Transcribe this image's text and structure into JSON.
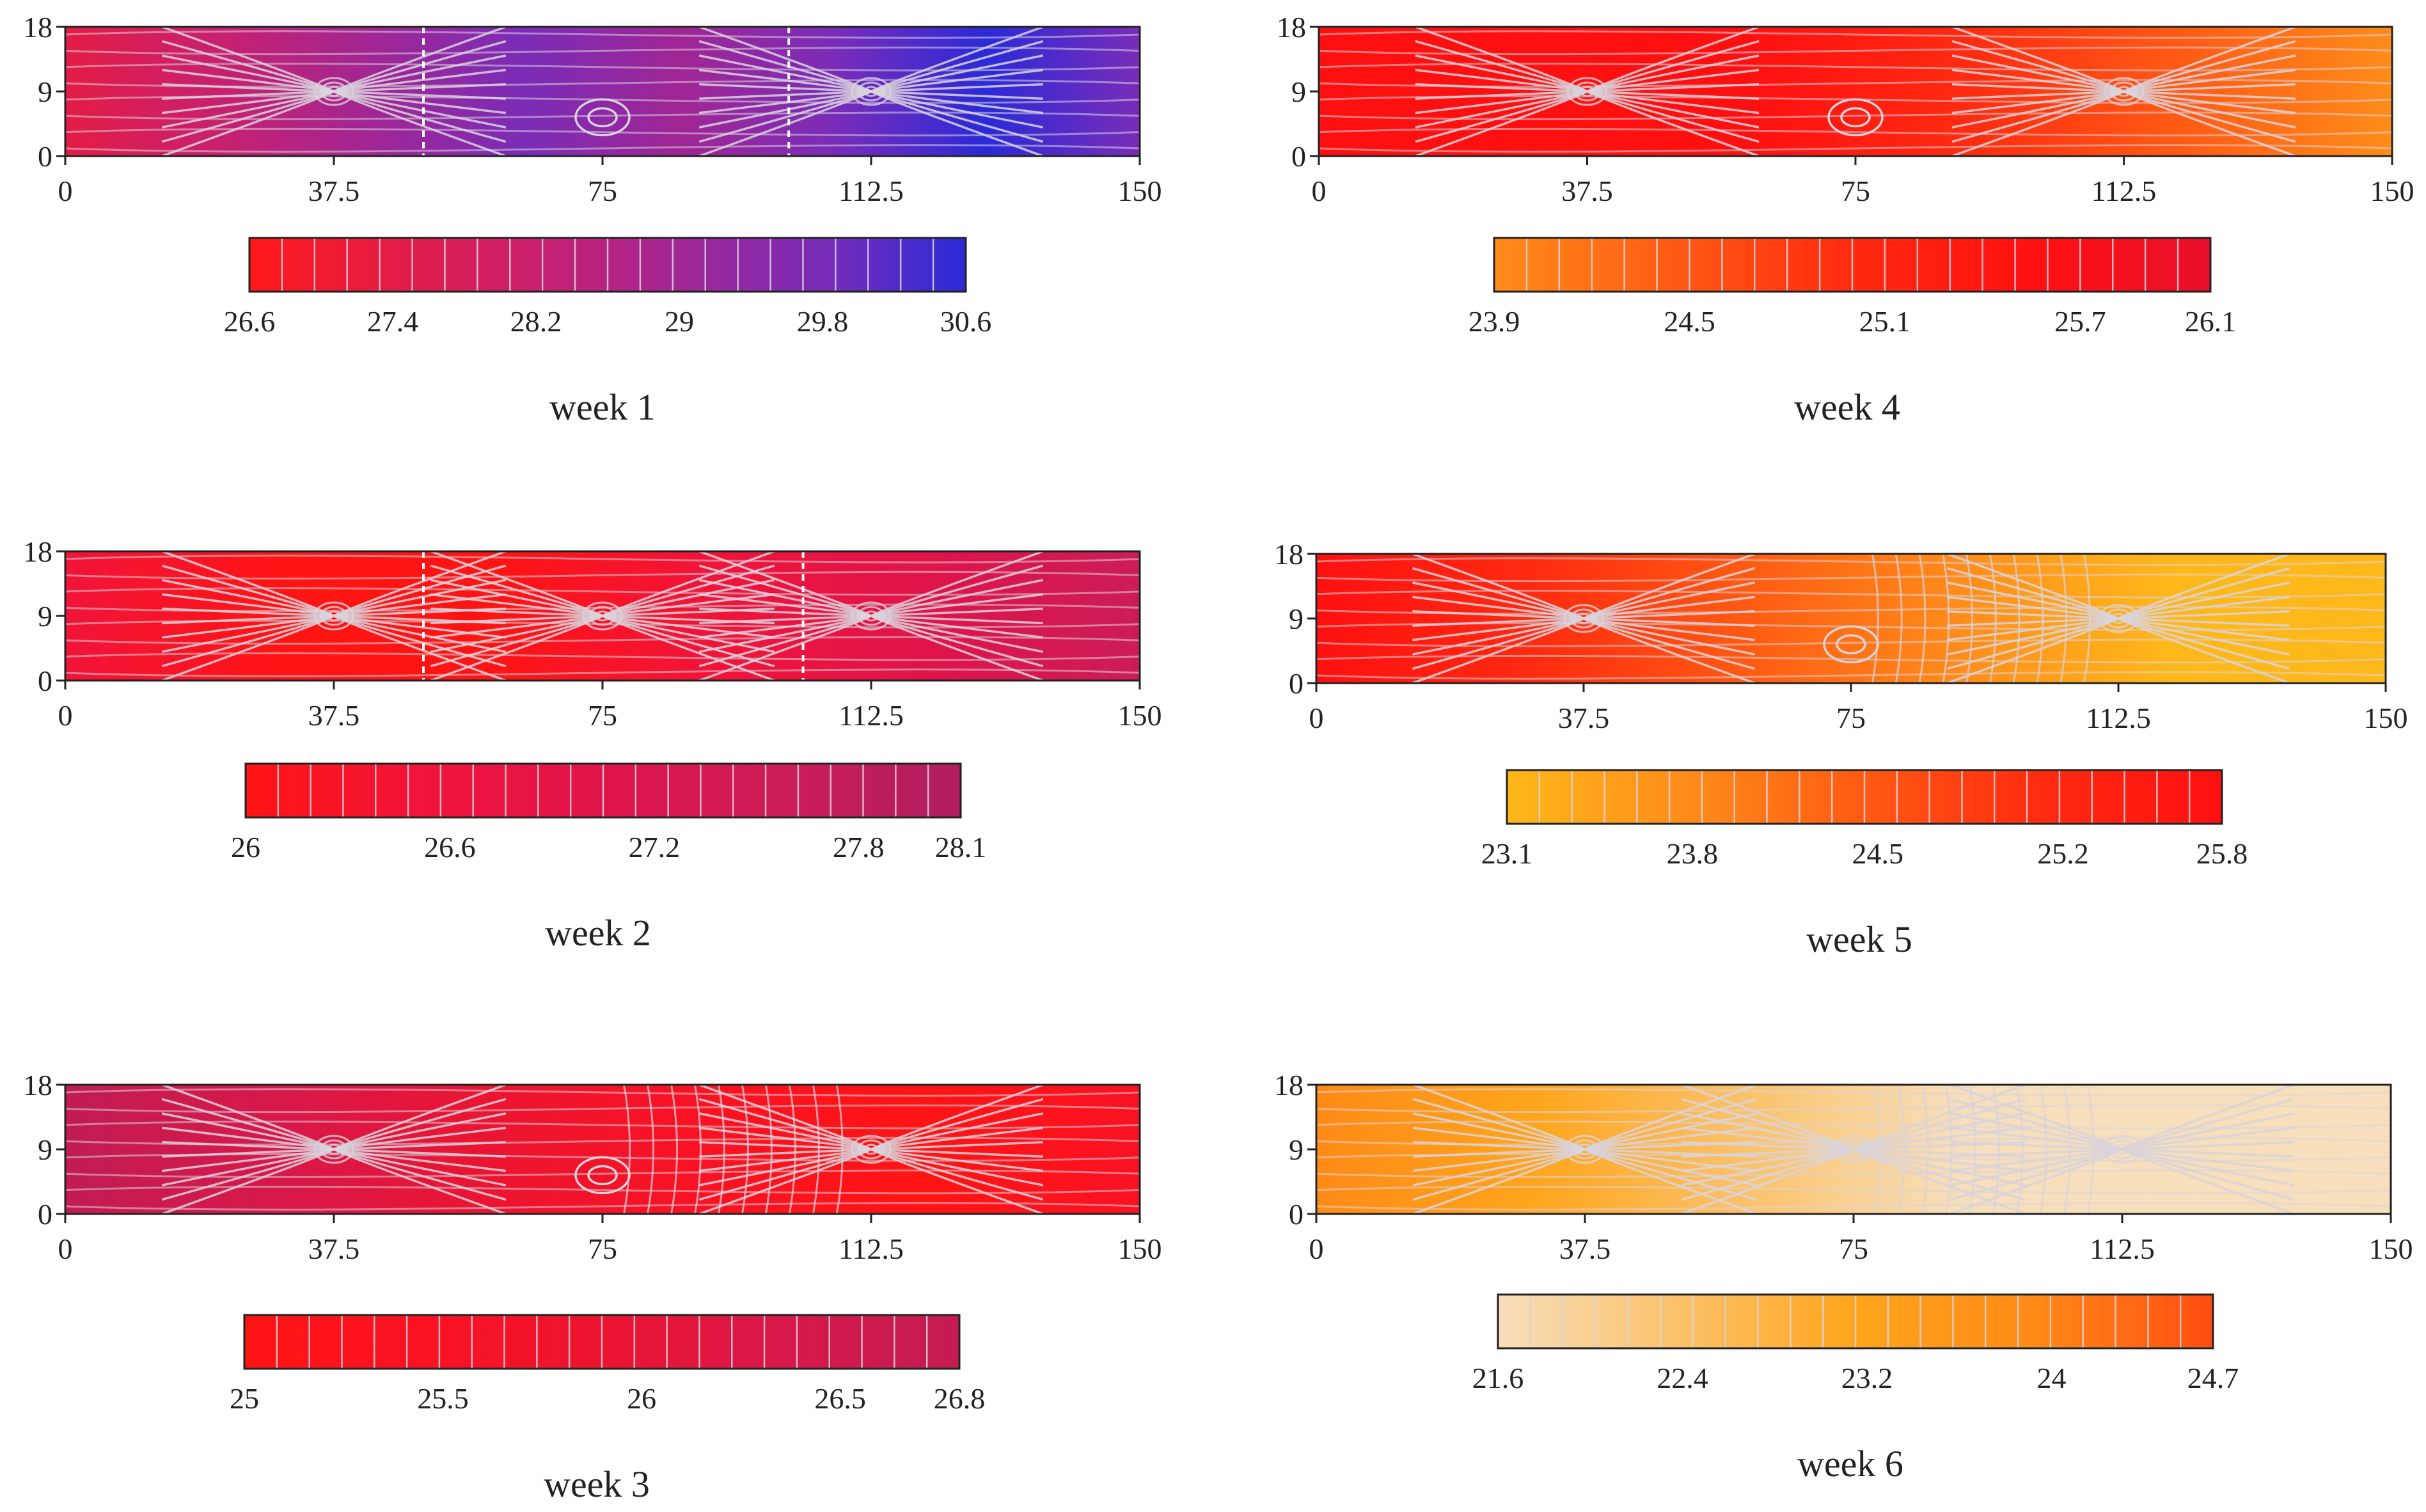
{
  "chart_data": [
    {
      "type": "heatmap",
      "title": "week 1",
      "x_ticks": [
        "0",
        "37.5",
        "75",
        "112.5",
        "150"
      ],
      "y_ticks": [
        "0",
        "9",
        "18"
      ],
      "xlim": [
        0,
        150
      ],
      "ylim": [
        0,
        18
      ],
      "colorbar": {
        "min": 26.6,
        "max": 30.6,
        "ticks": [
          "26.6",
          "27.4",
          "28.2",
          "29",
          "29.8",
          "30.6"
        ],
        "colors": [
          "#ff1818",
          "#e41c46",
          "#c8206f",
          "#a12694",
          "#7a2cb8",
          "#2b2ad8"
        ]
      },
      "hot_spots": [
        37.5,
        112.5
      ],
      "dividers": [
        50,
        101
      ],
      "side_spot": 75
    },
    {
      "type": "heatmap",
      "title": "week 4",
      "x_ticks": [
        "0",
        "37.5",
        "75",
        "112.5",
        "150"
      ],
      "y_ticks": [
        "0",
        "9",
        "18"
      ],
      "xlim": [
        0,
        150
      ],
      "ylim": [
        0,
        18
      ],
      "colorbar": {
        "min": 23.9,
        "max": 26.1,
        "ticks": [
          "23.9",
          "24.5",
          "25.1",
          "25.7",
          "26.1"
        ],
        "colors": [
          "#ff8c1a",
          "#ff5a14",
          "#ff2a10",
          "#ff1010",
          "#e8102c"
        ]
      },
      "hot_spots": [
        37.5,
        112.5
      ],
      "dividers": [],
      "side_spot": 75
    },
    {
      "type": "heatmap",
      "title": "week 2",
      "x_ticks": [
        "0",
        "37.5",
        "75",
        "112.5",
        "150"
      ],
      "y_ticks": [
        "0",
        "9",
        "18"
      ],
      "xlim": [
        0,
        150
      ],
      "ylim": [
        0,
        18
      ],
      "colorbar": {
        "min": 26,
        "max": 28.1,
        "ticks": [
          "26",
          "26.6",
          "27.2",
          "27.8",
          "28.1"
        ],
        "colors": [
          "#ff1414",
          "#f1143a",
          "#e0144a",
          "#cc1c58",
          "#b01e5e"
        ]
      },
      "hot_spots": [
        37.5,
        75,
        112.5
      ],
      "dividers": [
        50,
        103
      ],
      "side_spot": null
    },
    {
      "type": "heatmap",
      "title": "week 5",
      "x_ticks": [
        "0",
        "37.5",
        "75",
        "112.5",
        "150"
      ],
      "y_ticks": [
        "0",
        "9",
        "18"
      ],
      "xlim": [
        0,
        150
      ],
      "ylim": [
        0,
        18
      ],
      "colorbar": {
        "min": 23.1,
        "max": 25.8,
        "ticks": [
          "23.1",
          "23.8",
          "24.5",
          "25.2",
          "25.8"
        ],
        "colors": [
          "#ffb81a",
          "#ff8c1a",
          "#ff5a12",
          "#ff2a10",
          "#ff1010"
        ]
      },
      "hot_spots": [
        37.5,
        112.5
      ],
      "dividers": [],
      "side_spot": 75
    },
    {
      "type": "heatmap",
      "title": "week 3",
      "x_ticks": [
        "0",
        "37.5",
        "75",
        "112.5",
        "150"
      ],
      "y_ticks": [
        "0",
        "9",
        "18"
      ],
      "xlim": [
        0,
        150
      ],
      "ylim": [
        0,
        18
      ],
      "colorbar": {
        "min": 25,
        "max": 26.8,
        "ticks": [
          "25",
          "25.5",
          "26",
          "26.5",
          "26.8"
        ],
        "colors": [
          "#ff1414",
          "#fa1222",
          "#ec1430",
          "#d8184a",
          "#c21c52"
        ]
      },
      "hot_spots": [
        37.5,
        112.5
      ],
      "dividers": [],
      "side_spot": 75
    },
    {
      "type": "heatmap",
      "title": "week 6",
      "x_ticks": [
        "0",
        "37.5",
        "75",
        "112.5",
        "150"
      ],
      "y_ticks": [
        "0",
        "9",
        "18"
      ],
      "xlim": [
        0,
        150
      ],
      "ylim": [
        0,
        18
      ],
      "colorbar": {
        "min": 21.6,
        "max": 24.7,
        "ticks": [
          "21.6",
          "22.4",
          "23.2",
          "24",
          "24.7"
        ],
        "colors": [
          "#f7dfbc",
          "#fbc26a",
          "#ffa51c",
          "#ff8a16",
          "#ff4c12"
        ]
      },
      "hot_spots": [
        37.5,
        75,
        112.5
      ],
      "dividers": [],
      "side_spot": null
    }
  ]
}
